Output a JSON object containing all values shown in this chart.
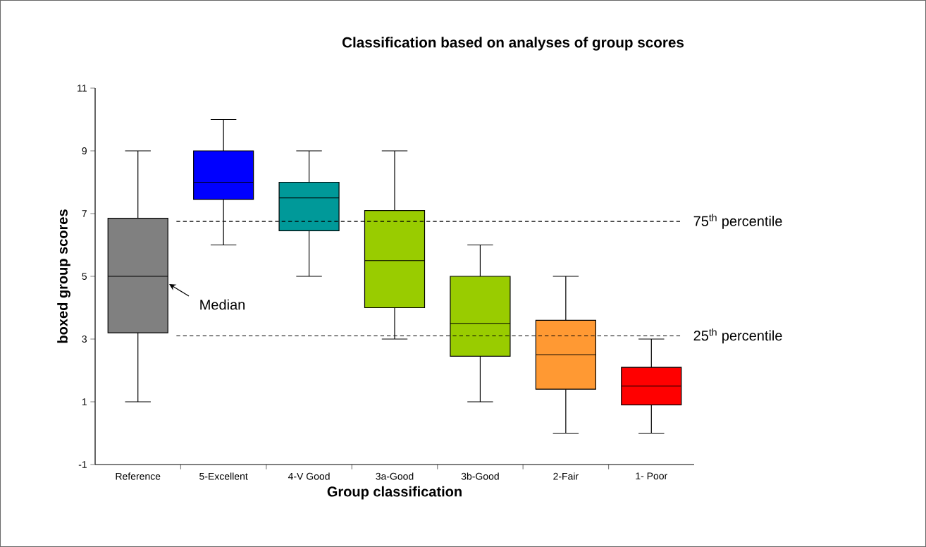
{
  "chart_data": {
    "type": "box",
    "title": "Classification based on analyses of group scores",
    "xlabel": "Group classification",
    "ylabel": "boxed group scores",
    "categories": [
      "Reference",
      "5-Excellent",
      "4-V Good",
      "3a-Good",
      "3b-Good",
      "2-Fair",
      "1- Poor"
    ],
    "boxes": [
      {
        "low": 1,
        "q1": 3.2,
        "median": 5,
        "q3": 6.85,
        "high": 9
      },
      {
        "low": 6,
        "q1": 7.45,
        "median": 8,
        "q3": 9,
        "high": 10
      },
      {
        "low": 5,
        "q1": 6.45,
        "median": 7.5,
        "q3": 8,
        "high": 9
      },
      {
        "low": 3,
        "q1": 4,
        "median": 5.5,
        "q3": 7.1,
        "high": 9
      },
      {
        "low": 1,
        "q1": 2.45,
        "median": 3.5,
        "q3": 5,
        "high": 6
      },
      {
        "low": 0,
        "q1": 1.4,
        "median": 2.5,
        "q3": 3.6,
        "high": 5
      },
      {
        "low": 0,
        "q1": 0.9,
        "median": 1.5,
        "q3": 2.1,
        "high": 3
      }
    ],
    "colors": [
      "#808080",
      "#0000ff",
      "#009999",
      "#99cc00",
      "#99cc00",
      "#ff9933",
      "#ff0000"
    ],
    "ylim": [
      -1,
      11
    ],
    "yticks": [
      -1,
      1,
      3,
      5,
      7,
      9,
      11
    ],
    "ref_lines": [
      {
        "axis": "y",
        "value": 6.75,
        "label": "75$^{th}$ percentile",
        "line_style": "dashed"
      },
      {
        "axis": "y",
        "value": 3.1,
        "label": "25$^{th}$ percentile",
        "line_style": "dashed"
      }
    ],
    "annotations": [
      "Median"
    ]
  }
}
